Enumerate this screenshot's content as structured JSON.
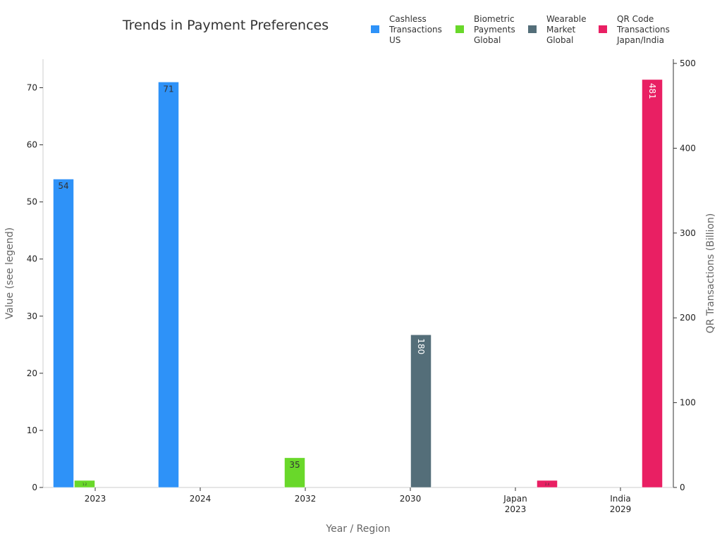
{
  "chart_data": {
    "type": "bar",
    "title": "Trends in Payment Preferences",
    "xlabel": "Year / Region",
    "ylabel": "Value (see legend)",
    "y2label": "QR Transactions (Billion)",
    "ylim": [
      0,
      75
    ],
    "y2lim": [
      0,
      505
    ],
    "yticks": [
      0,
      10,
      20,
      30,
      40,
      50,
      60,
      70
    ],
    "y2ticks": [
      0,
      100,
      200,
      300,
      400,
      500
    ],
    "categories": [
      [
        "2023"
      ],
      [
        "2024"
      ],
      [
        "2032"
      ],
      [
        "2030"
      ],
      [
        "Japan",
        "2023"
      ],
      [
        "India",
        "2029"
      ]
    ],
    "legend_position": "top-right",
    "grid": false,
    "series": [
      {
        "name": [
          "Cashless",
          "Transactions",
          "US"
        ],
        "color": "#2e92f8",
        "axis": "left",
        "values": [
          54,
          71,
          null,
          null,
          null,
          null
        ],
        "labels": [
          "54",
          "71",
          "",
          "",
          "",
          ""
        ]
      },
      {
        "name": [
          "Biometric",
          "Payments",
          "Global"
        ],
        "color": "#69d82a",
        "axis": "right",
        "values": [
          1.2,
          null,
          35,
          null,
          null,
          null
        ],
        "labels": [
          "1.2",
          "",
          "35",
          "",
          "",
          ""
        ]
      },
      {
        "name": [
          "Wearable",
          "Market",
          "Global"
        ],
        "color": "#546e79",
        "axis": "right",
        "values": [
          null,
          null,
          null,
          180,
          null,
          null
        ],
        "labels": [
          "",
          "",
          "",
          "180",
          "",
          ""
        ]
      },
      {
        "name": [
          "QR Code",
          "Transactions",
          "Japan/India"
        ],
        "color": "#e91f63",
        "axis": "right",
        "values": [
          null,
          null,
          null,
          null,
          2.4,
          481
        ],
        "labels": [
          "",
          "",
          "",
          "",
          "2.4",
          "481"
        ]
      }
    ]
  }
}
